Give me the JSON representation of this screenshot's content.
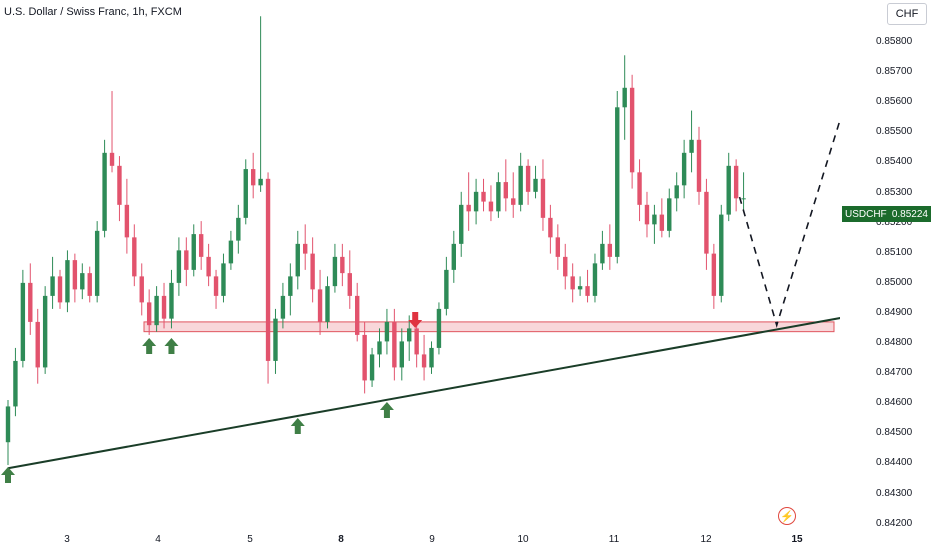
{
  "header": {
    "title": "U.S. Dollar / Swiss Franc, 1h, FXCM"
  },
  "price_axis": {
    "currency": "CHF",
    "ticks": [
      "0.85800",
      "0.85700",
      "0.85600",
      "0.85500",
      "0.85400",
      "0.85300",
      "0.85200",
      "0.85100",
      "0.85000",
      "0.84900",
      "0.84800",
      "0.84700",
      "0.84600",
      "0.84500",
      "0.84400",
      "0.84300",
      "0.84200"
    ],
    "current_symbol": "USDCHF",
    "current_price": "0.85224"
  },
  "time_axis": {
    "ticks": [
      {
        "label": "3",
        "bold": false
      },
      {
        "label": "4",
        "bold": false
      },
      {
        "label": "5",
        "bold": false
      },
      {
        "label": "8",
        "bold": true
      },
      {
        "label": "9",
        "bold": false
      },
      {
        "label": "10",
        "bold": false
      },
      {
        "label": "11",
        "bold": false
      },
      {
        "label": "12",
        "bold": false
      },
      {
        "label": "15",
        "bold": true
      }
    ]
  },
  "colors": {
    "up": "#2e8b57",
    "down": "#e2536d",
    "trendline": "#1a3d28",
    "zone_fill": "#f6c9cd",
    "zone_border": "#e0555f",
    "arrow_up": "#3f7f46",
    "arrow_down": "#e03340"
  },
  "icons": {
    "events": "lightning-icon"
  },
  "chart_data": {
    "type": "candlestick",
    "symbol": "USDCHF",
    "interval": "1h",
    "ylim": [
      0.842,
      0.8583
    ],
    "support_zone": [
      0.8481,
      0.8484
    ],
    "trendline": [
      [
        0,
        0.8439
      ],
      [
        108,
        0.84845
      ]
    ],
    "projection": [
      [
        99,
        0.85224
      ],
      [
        104,
        0.8483
      ],
      [
        108,
        0.8564
      ]
    ],
    "arrows_up_at": [
      0,
      19,
      22,
      39,
      51
    ],
    "arrow_down_at": [
      54
    ],
    "candles": [
      [
        0.8447,
        0.846,
        0.844,
        0.8458
      ],
      [
        0.8458,
        0.8476,
        0.8455,
        0.8472
      ],
      [
        0.8472,
        0.85,
        0.847,
        0.8496
      ],
      [
        0.8496,
        0.8502,
        0.848,
        0.8484
      ],
      [
        0.8484,
        0.8488,
        0.8465,
        0.847
      ],
      [
        0.847,
        0.8495,
        0.8468,
        0.8492
      ],
      [
        0.8492,
        0.8504,
        0.8488,
        0.8498
      ],
      [
        0.8498,
        0.85,
        0.8488,
        0.849
      ],
      [
        0.849,
        0.8506,
        0.8487,
        0.8503
      ],
      [
        0.8503,
        0.8505,
        0.849,
        0.8494
      ],
      [
        0.8494,
        0.8502,
        0.8491,
        0.8499
      ],
      [
        0.8499,
        0.8501,
        0.849,
        0.8492
      ],
      [
        0.8492,
        0.8515,
        0.849,
        0.8512
      ],
      [
        0.8512,
        0.854,
        0.851,
        0.8536
      ],
      [
        0.8536,
        0.8555,
        0.853,
        0.8532
      ],
      [
        0.8532,
        0.8535,
        0.8515,
        0.852
      ],
      [
        0.852,
        0.8528,
        0.8505,
        0.851
      ],
      [
        0.851,
        0.8514,
        0.8495,
        0.8498
      ],
      [
        0.8498,
        0.8502,
        0.8486,
        0.849
      ],
      [
        0.849,
        0.8494,
        0.848,
        0.8483
      ],
      [
        0.8483,
        0.8495,
        0.8481,
        0.8492
      ],
      [
        0.8492,
        0.8496,
        0.8482,
        0.8485
      ],
      [
        0.8485,
        0.85,
        0.8482,
        0.8496
      ],
      [
        0.8496,
        0.851,
        0.8492,
        0.8506
      ],
      [
        0.8506,
        0.851,
        0.8495,
        0.85
      ],
      [
        0.85,
        0.8514,
        0.8498,
        0.8511
      ],
      [
        0.8511,
        0.8515,
        0.85,
        0.8504
      ],
      [
        0.8504,
        0.8508,
        0.8495,
        0.8498
      ],
      [
        0.8498,
        0.85,
        0.8488,
        0.8492
      ],
      [
        0.8492,
        0.8505,
        0.849,
        0.8502
      ],
      [
        0.8502,
        0.8512,
        0.85,
        0.8509
      ],
      [
        0.8509,
        0.852,
        0.8505,
        0.8516
      ],
      [
        0.8516,
        0.8534,
        0.8514,
        0.8531
      ],
      [
        0.8531,
        0.8536,
        0.8522,
        0.8526
      ],
      [
        0.8526,
        0.8578,
        0.8524,
        0.8528
      ],
      [
        0.8528,
        0.853,
        0.8465,
        0.8472
      ],
      [
        0.8472,
        0.8488,
        0.8468,
        0.8485
      ],
      [
        0.8485,
        0.8496,
        0.8482,
        0.8492
      ],
      [
        0.8492,
        0.8502,
        0.8486,
        0.8498
      ],
      [
        0.8498,
        0.8512,
        0.8494,
        0.8508
      ],
      [
        0.8508,
        0.8514,
        0.85,
        0.8505
      ],
      [
        0.8505,
        0.851,
        0.849,
        0.8494
      ],
      [
        0.8494,
        0.85,
        0.848,
        0.8484
      ],
      [
        0.8484,
        0.8498,
        0.8482,
        0.8495
      ],
      [
        0.8495,
        0.8508,
        0.8493,
        0.8504
      ],
      [
        0.8504,
        0.8508,
        0.8495,
        0.8499
      ],
      [
        0.8499,
        0.8506,
        0.8488,
        0.8492
      ],
      [
        0.8492,
        0.8496,
        0.8478,
        0.848
      ],
      [
        0.848,
        0.8484,
        0.8462,
        0.8466
      ],
      [
        0.8466,
        0.8476,
        0.8464,
        0.8474
      ],
      [
        0.8474,
        0.8482,
        0.847,
        0.8478
      ],
      [
        0.8478,
        0.8488,
        0.8474,
        0.8484
      ],
      [
        0.8484,
        0.8488,
        0.8466,
        0.847
      ],
      [
        0.847,
        0.8482,
        0.8466,
        0.8478
      ],
      [
        0.8478,
        0.8486,
        0.8472,
        0.8482
      ],
      [
        0.8482,
        0.8486,
        0.847,
        0.8474
      ],
      [
        0.8474,
        0.848,
        0.8466,
        0.847
      ],
      [
        0.847,
        0.8478,
        0.8468,
        0.8476
      ],
      [
        0.8476,
        0.849,
        0.8474,
        0.8488
      ],
      [
        0.8488,
        0.8504,
        0.8486,
        0.85
      ],
      [
        0.85,
        0.8512,
        0.8496,
        0.8508
      ],
      [
        0.8508,
        0.8524,
        0.8504,
        0.852
      ],
      [
        0.852,
        0.853,
        0.8512,
        0.8518
      ],
      [
        0.8518,
        0.8528,
        0.8514,
        0.8524
      ],
      [
        0.8524,
        0.8528,
        0.8518,
        0.8521
      ],
      [
        0.8521,
        0.8526,
        0.8515,
        0.8518
      ],
      [
        0.8518,
        0.853,
        0.8516,
        0.8527
      ],
      [
        0.8527,
        0.8534,
        0.8518,
        0.8522
      ],
      [
        0.8522,
        0.853,
        0.8516,
        0.852
      ],
      [
        0.852,
        0.8536,
        0.8518,
        0.8532
      ],
      [
        0.8532,
        0.8534,
        0.852,
        0.8524
      ],
      [
        0.8524,
        0.8532,
        0.8522,
        0.8528
      ],
      [
        0.8528,
        0.8534,
        0.8512,
        0.8516
      ],
      [
        0.8516,
        0.852,
        0.8505,
        0.851
      ],
      [
        0.851,
        0.8514,
        0.85,
        0.8504
      ],
      [
        0.8504,
        0.8508,
        0.8494,
        0.8498
      ],
      [
        0.8498,
        0.8502,
        0.849,
        0.8494
      ],
      [
        0.8494,
        0.8498,
        0.8492,
        0.8495
      ],
      [
        0.8495,
        0.85,
        0.849,
        0.8492
      ],
      [
        0.8492,
        0.8505,
        0.849,
        0.8502
      ],
      [
        0.8502,
        0.8512,
        0.85,
        0.8508
      ],
      [
        0.8508,
        0.8514,
        0.85,
        0.8504
      ],
      [
        0.8504,
        0.8555,
        0.8502,
        0.855
      ],
      [
        0.855,
        0.8566,
        0.854,
        0.8556
      ],
      [
        0.8556,
        0.856,
        0.8525,
        0.853
      ],
      [
        0.853,
        0.8534,
        0.8515,
        0.852
      ],
      [
        0.852,
        0.8524,
        0.851,
        0.8514
      ],
      [
        0.8514,
        0.852,
        0.8508,
        0.8517
      ],
      [
        0.8517,
        0.8522,
        0.851,
        0.8512
      ],
      [
        0.8512,
        0.8525,
        0.851,
        0.8522
      ],
      [
        0.8522,
        0.853,
        0.8518,
        0.8526
      ],
      [
        0.8526,
        0.854,
        0.8522,
        0.8536
      ],
      [
        0.8536,
        0.8549,
        0.853,
        0.854
      ],
      [
        0.854,
        0.8544,
        0.852,
        0.8524
      ],
      [
        0.8524,
        0.8528,
        0.85,
        0.8505
      ],
      [
        0.8505,
        0.8508,
        0.8488,
        0.8492
      ],
      [
        0.8492,
        0.852,
        0.849,
        0.8517
      ],
      [
        0.8517,
        0.8536,
        0.8515,
        0.8532
      ],
      [
        0.8532,
        0.8534,
        0.8518,
        0.8522
      ],
      [
        0.8522,
        0.853,
        0.8518,
        0.8522
      ]
    ]
  }
}
